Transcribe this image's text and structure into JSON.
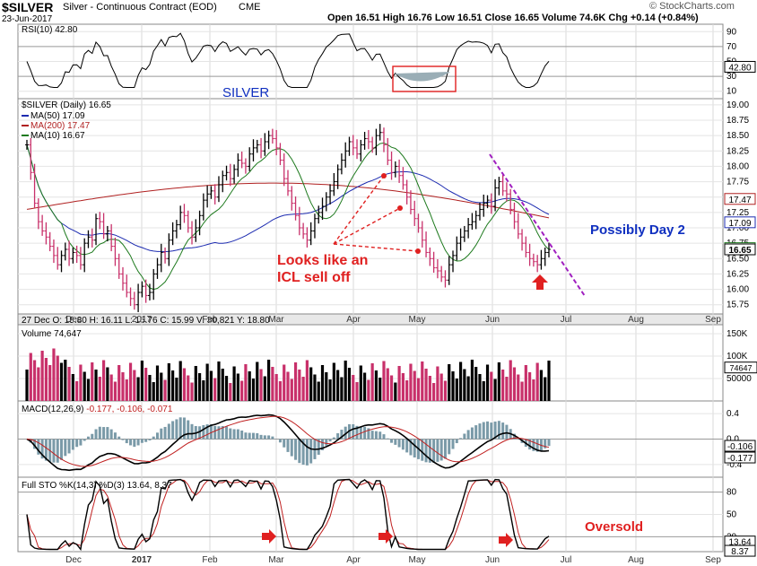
{
  "header": {
    "symbol": "$SILVER",
    "name": "Silver - Continuous Contract (EOD)",
    "exchange": "CME",
    "date": "23-Jun-2017",
    "ohlc": "Open 16.51  High 16.76  Low 16.51  Close 16.65  Volume 74.6K  Chg +0.14 (+0.84%)",
    "copyright": "© StockCharts.com",
    "watermark": "SILVER"
  },
  "annotations": {
    "icl_line1": "Looks like an",
    "icl_line2": "ICL sell off",
    "day2": "Possibly Day 2",
    "oversold": "Oversold"
  },
  "colors": {
    "price": "#000000",
    "ma50": "#1c2bb0",
    "ma200": "#b02020",
    "ma10": "#1e7a1e",
    "macd": "#000000",
    "signal": "#c02020",
    "hist": "#7a9aa8",
    "rsi": "#000000",
    "rsi_fill": "#9aaeb6",
    "vol_up": "#000000",
    "vol_down": "#c8306a",
    "annotation": "#e02020",
    "trend": "#a020c0",
    "label_blue": "#1030c0"
  },
  "chart_data": [
    {
      "type": "line",
      "panel": "rsi",
      "label": "RSI(10) 42.80",
      "ylim": [
        0,
        100
      ],
      "yticks": [
        10,
        30,
        50,
        70,
        90
      ],
      "current": "42.80"
    },
    {
      "type": "ohlc",
      "panel": "price",
      "title": "$SILVER (Daily) 16.65",
      "ylim": [
        15.6,
        19.1
      ],
      "yticks": [
        "15.75",
        "16.00",
        "16.25",
        "16.50",
        "16.75",
        "17.00",
        "17.25",
        "17.50",
        "17.75",
        "18.00",
        "18.25",
        "18.50",
        "18.75",
        "19.00"
      ],
      "x_months": [
        "Dec",
        "2017",
        "Feb",
        "Mar",
        "Apr",
        "May",
        "Jun",
        "Jul",
        "Aug",
        "Sep"
      ],
      "legend": [
        {
          "name": "MA(50) 17.09",
          "color": "#1c2bb0"
        },
        {
          "name": "MA(200) 17.47",
          "color": "#b02020"
        },
        {
          "name": "MA(10) 16.67",
          "color": "#1e7a1e"
        }
      ],
      "right_labels": [
        "17.47",
        "17.09",
        "16.67",
        "16.65"
      ],
      "closes": [
        18.35,
        17.9,
        17.4,
        17.1,
        16.95,
        16.85,
        16.7,
        16.55,
        16.4,
        16.55,
        16.65,
        16.5,
        16.6,
        16.55,
        16.4,
        16.75,
        16.85,
        16.8,
        17.15,
        17.1,
        16.9,
        16.95,
        16.7,
        16.5,
        16.25,
        16.1,
        15.95,
        15.85,
        15.75,
        15.95,
        16.05,
        15.9,
        15.95,
        16.25,
        16.4,
        16.6,
        16.5,
        16.8,
        16.95,
        17.05,
        17.25,
        17.2,
        17.0,
        16.85,
        17.0,
        17.2,
        17.45,
        17.55,
        17.6,
        17.5,
        17.7,
        17.85,
        17.9,
        17.8,
        17.95,
        18.1,
        18.05,
        18.0,
        18.2,
        18.3,
        18.35,
        18.25,
        18.4,
        18.5,
        18.45,
        18.3,
        18.1,
        17.8,
        17.6,
        17.4,
        17.2,
        17.0,
        16.9,
        16.8,
        16.95,
        17.15,
        17.25,
        17.35,
        17.5,
        17.6,
        17.75,
        17.95,
        18.1,
        18.25,
        18.4,
        18.3,
        18.2,
        18.35,
        18.45,
        18.4,
        18.3,
        18.5,
        18.55,
        18.35,
        18.1,
        17.9,
        18.0,
        17.85,
        17.7,
        17.5,
        17.3,
        17.15,
        17.0,
        16.8,
        16.6,
        16.5,
        16.35,
        16.3,
        16.2,
        16.15,
        16.4,
        16.55,
        16.75,
        16.85,
        16.95,
        17.05,
        17.1,
        17.2,
        17.3,
        17.4,
        17.45,
        17.35,
        17.65,
        17.75,
        17.6,
        17.55,
        17.3,
        17.1,
        16.9,
        16.75,
        16.6,
        16.5,
        16.45,
        16.4,
        16.5,
        16.6,
        16.65
      ]
    },
    {
      "type": "bar",
      "panel": "volume",
      "label": "Volume 74,647",
      "yticks": [
        "150K",
        "100K",
        "50000"
      ],
      "current": "74647"
    },
    {
      "type": "line",
      "panel": "macd",
      "label": "MACD(12,26,9)",
      "values_text": "-0.177, -0.106, -0.071",
      "yticks": [
        "0.4",
        "0.0",
        "-0.4"
      ],
      "right_labels": [
        "-0.106",
        "-0.177"
      ]
    },
    {
      "type": "line",
      "panel": "sto",
      "label": "Full STO %K(14,3) %D(3) 13.64, 8.37",
      "ylim": [
        0,
        100
      ],
      "yticks": [
        "80",
        "50",
        "20"
      ],
      "right_labels": [
        "13.64",
        "8.37"
      ]
    }
  ],
  "stats": "27 Dec O: 15.80  H: 16.11  L: 15.76  C: 15.99  V: 30,821  Y: 18.80"
}
